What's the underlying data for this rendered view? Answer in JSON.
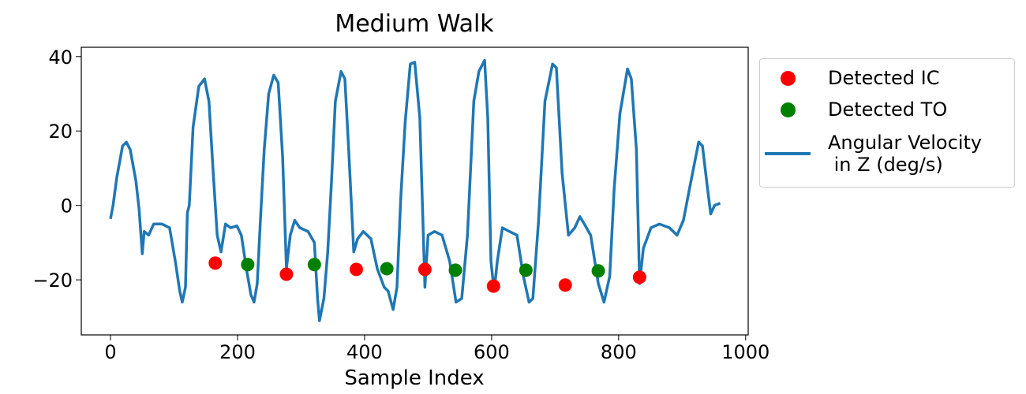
{
  "chart_data": {
    "type": "line",
    "title": "Medium Walk",
    "x_label": "Sample Index",
    "xlim": [
      -46,
      1004
    ],
    "ylim": [
      -34.8,
      42.5
    ],
    "xticks": [
      0,
      200,
      400,
      600,
      800,
      1000
    ],
    "yticks": [
      {
        "value": -20,
        "label": "−20"
      },
      0,
      20,
      40
    ],
    "series": [
      {
        "name": "Detected IC",
        "type": "scatter",
        "color": "#ff0000",
        "x": [
          165,
          277,
          387,
          495,
          603,
          716,
          833
        ],
        "values": [
          -15.5,
          -18.5,
          -17.2,
          -17.2,
          -21.7,
          -21.4,
          -19.3
        ]
      },
      {
        "name": "Detected TO",
        "type": "scatter",
        "color": "#008000",
        "x": [
          216,
          321,
          435,
          543,
          654,
          768
        ],
        "values": [
          -15.9,
          -15.9,
          -17,
          -17.4,
          -17.4,
          -17.6
        ]
      },
      {
        "name": "Angular Velocity\n in Z (deg/s)",
        "type": "line",
        "color": "#1f77b4",
        "x": [
          0,
          4,
          10,
          19,
          25,
          31,
          40,
          45,
          50,
          53,
          60,
          68,
          81,
          93,
          102,
          109,
          113,
          118,
          121,
          124,
          130,
          139,
          148,
          155,
          162,
          168,
          174,
          181,
          189,
          199,
          206,
          214,
          221,
          226,
          231,
          236,
          242,
          249,
          257,
          264,
          271,
          277,
          283,
          290,
          298,
          311,
          321,
          326,
          329,
          336,
          342,
          348,
          354,
          363,
          369,
          375,
          383,
          389,
          398,
          410,
          420,
          431,
          437,
          445,
          451,
          457,
          464,
          472,
          479,
          487,
          495,
          500,
          510,
          522,
          534,
          544,
          553,
          562,
          572,
          580,
          589,
          594,
          599,
          604,
          609,
          617,
          628,
          640,
          650,
          659,
          665,
          674,
          684,
          696,
          702,
          711,
          721,
          731,
          739,
          746,
          756,
          768,
          777,
          786,
          793,
          802,
          814,
          820,
          828,
          833,
          839,
          851,
          864,
          880,
          892,
          902,
          914,
          926,
          932,
          940,
          945,
          951,
          960
        ],
        "values": [
          -3.6,
          0,
          7.6,
          16,
          17,
          15,
          6.6,
          -1,
          -13,
          -7,
          -8,
          -5,
          -5,
          -6,
          -15,
          -23,
          -26,
          -22,
          -2,
          0,
          21,
          32,
          34,
          28,
          8,
          -8,
          -12.5,
          -5,
          -6,
          -5.5,
          -8,
          -17,
          -24,
          -26,
          -21,
          -4,
          15,
          30,
          35,
          33,
          13,
          -17,
          -8,
          -4,
          -6,
          -7,
          -10,
          -25,
          -31,
          -25,
          -12.5,
          6.6,
          28,
          36,
          34,
          15,
          -12.5,
          -9,
          -7,
          -9,
          -17,
          -22,
          -23,
          -28,
          -22,
          2,
          22.5,
          38,
          38.5,
          23.5,
          -22,
          -8,
          -7,
          -8,
          -15,
          -26,
          -25,
          -8,
          28,
          36,
          39,
          23.5,
          -15,
          -23,
          -15,
          -6,
          -7,
          -8,
          -19,
          -26,
          -25,
          -4,
          28,
          38,
          37,
          8.7,
          -8,
          -6,
          -3,
          -5,
          -8,
          -21,
          -26,
          -19,
          4.5,
          24.6,
          36.7,
          34,
          15,
          -21,
          -11.5,
          -6,
          -5,
          -6,
          -8,
          -4,
          6.6,
          17,
          16,
          4.5,
          -2.3,
          0,
          0.6
        ]
      }
    ]
  }
}
